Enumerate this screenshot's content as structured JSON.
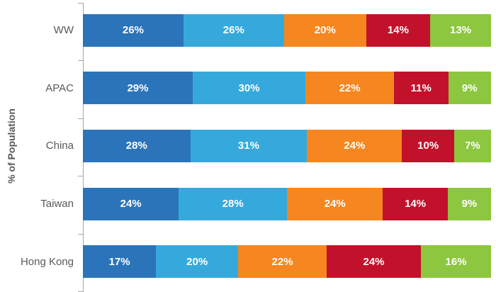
{
  "chart_data": {
    "type": "bar",
    "orientation": "horizontal",
    "stacked": true,
    "title": "",
    "xlabel": "",
    "ylabel": "% of Population",
    "legend_position": "none",
    "grid": false,
    "data_label_suffix": "%",
    "categories": [
      "WW",
      "APAC",
      "China",
      "Taiwan",
      "Hong Kong"
    ],
    "series": [
      {
        "name": "dark-blue",
        "color": "#2B74B9",
        "values": [
          26,
          29,
          28,
          24,
          17
        ]
      },
      {
        "name": "light-blue",
        "color": "#36A9DC",
        "values": [
          26,
          30,
          31,
          28,
          20
        ]
      },
      {
        "name": "orange",
        "color": "#F6861F",
        "values": [
          20,
          22,
          24,
          24,
          22
        ]
      },
      {
        "name": "red",
        "color": "#C2122B",
        "values": [
          14,
          11,
          10,
          14,
          24
        ]
      },
      {
        "name": "green",
        "color": "#8DC63F",
        "values": [
          13,
          9,
          7,
          9,
          16
        ]
      }
    ]
  },
  "colors": {
    "axis": "#A6A6A6",
    "category_text": "#595959",
    "bar_label_text": "#FFFFFF"
  }
}
